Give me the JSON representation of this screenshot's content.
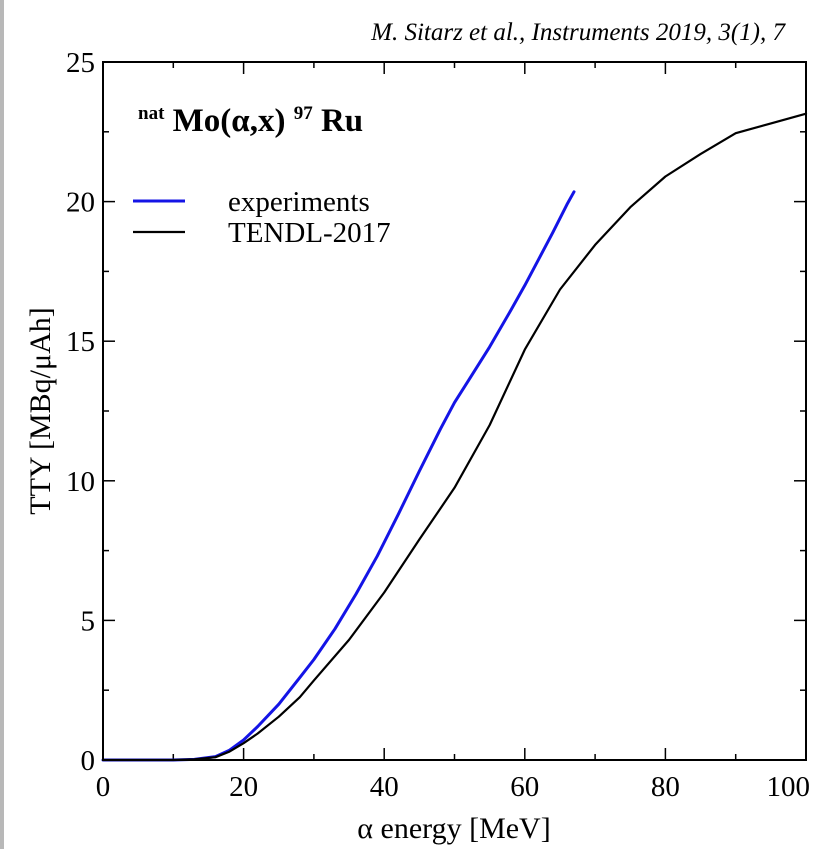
{
  "citation": "M. Sitarz et al., Instruments 2019, 3(1), 7",
  "chart_data": {
    "type": "line",
    "title": {
      "sup1": "nat",
      "element1": "Mo(α,x)",
      "sup2": "97",
      "element2": "Ru"
    },
    "xlabel": "α energy [MeV]",
    "ylabel": "TTY [MBq/μAh]",
    "xlim": [
      0,
      100
    ],
    "ylim": [
      0,
      25
    ],
    "xticks": [
      "0",
      "20",
      "40",
      "60",
      "80",
      "100"
    ],
    "yticks": [
      "0",
      "5",
      "10",
      "15",
      "20",
      "25"
    ],
    "legend_position": "top-left",
    "series": [
      {
        "name": "experiments",
        "color": "#1414e6",
        "x": [
          0,
          10,
          13,
          16,
          18,
          20,
          22,
          25,
          28,
          30,
          33,
          36,
          39,
          42,
          45,
          48,
          50,
          52,
          55,
          58,
          60,
          62,
          64,
          66,
          67
        ],
        "y": [
          0,
          0,
          0.02,
          0.12,
          0.35,
          0.72,
          1.2,
          2.0,
          2.95,
          3.6,
          4.7,
          5.95,
          7.3,
          8.8,
          10.35,
          11.85,
          12.8,
          13.6,
          14.8,
          16.1,
          17.0,
          17.95,
          18.9,
          19.9,
          20.35
        ]
      },
      {
        "name": "TENDL-2017",
        "color": "#000000",
        "x": [
          0,
          10,
          13,
          16,
          18,
          20,
          22,
          25,
          28,
          30,
          35,
          40,
          45,
          50,
          55,
          60,
          65,
          70,
          75,
          80,
          85,
          90,
          95,
          100
        ],
        "y": [
          0,
          0,
          0.02,
          0.1,
          0.3,
          0.6,
          0.95,
          1.55,
          2.25,
          2.85,
          4.3,
          6.0,
          7.9,
          9.75,
          12.0,
          14.7,
          16.85,
          18.45,
          19.8,
          20.9,
          21.7,
          22.45,
          22.8,
          23.15
        ]
      }
    ]
  }
}
